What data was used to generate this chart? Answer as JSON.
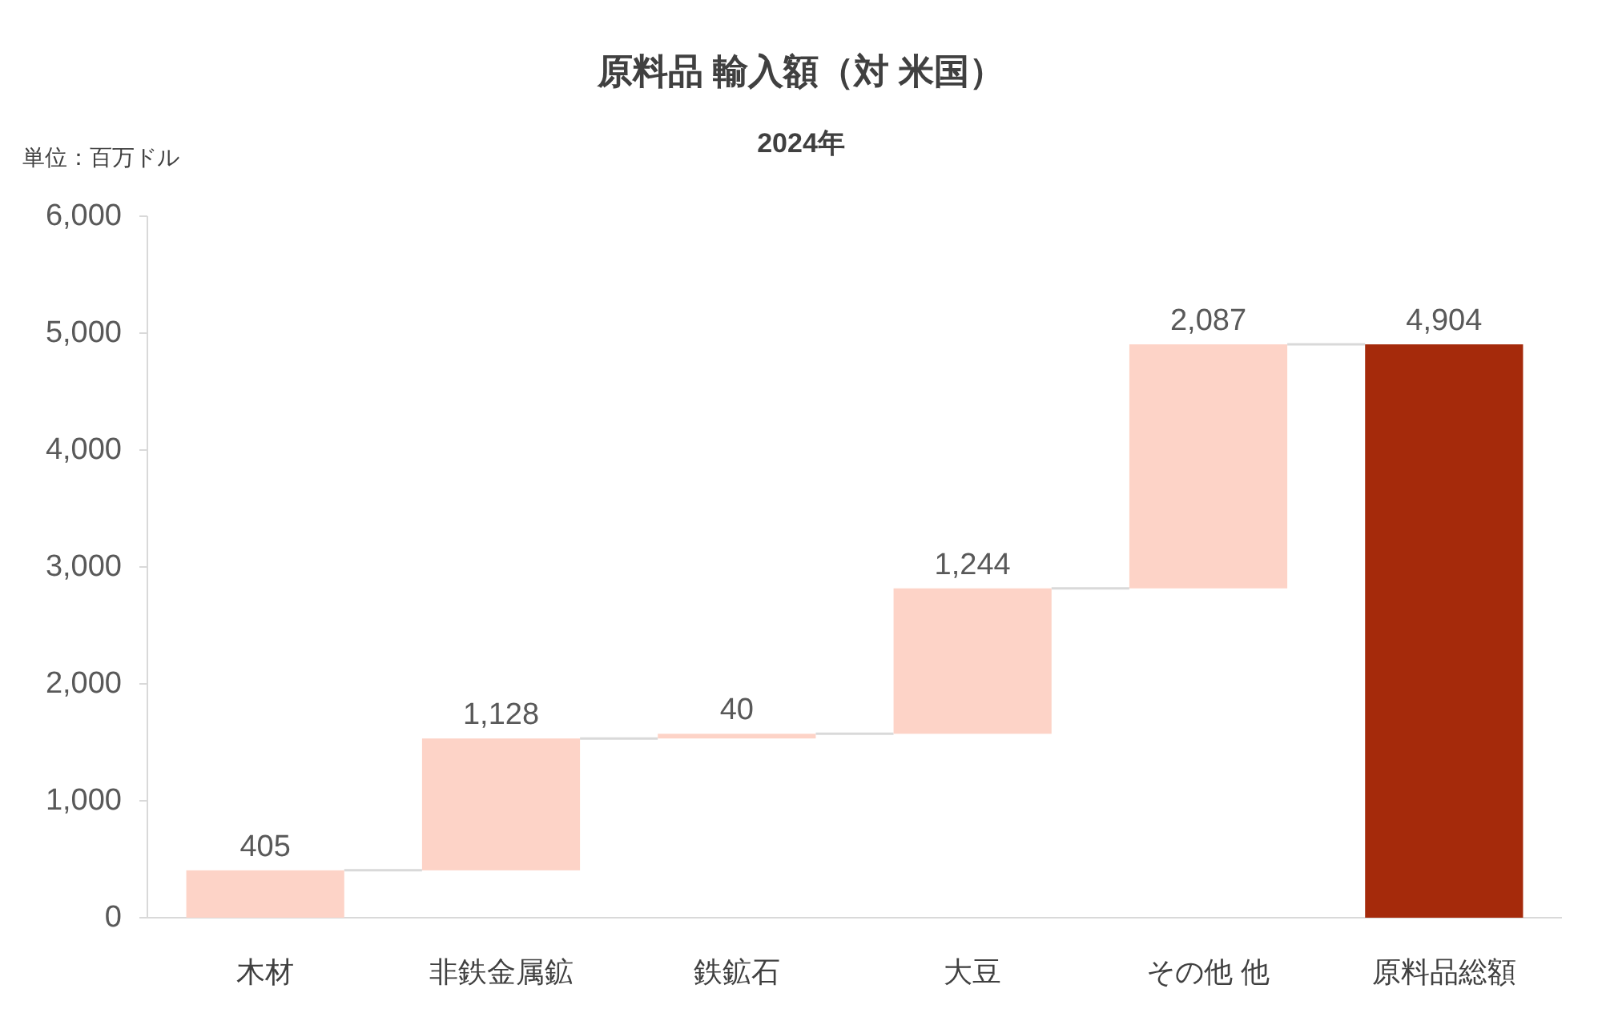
{
  "chart_data": {
    "type": "bar",
    "title": "原料品 輸入額（対 米国）",
    "subtitle": "2024年",
    "annotations": [
      "単位：百万ドル"
    ],
    "categories": [
      "木材",
      "非鉄金属鉱",
      "鉄鉱石",
      "大豆",
      "その他 他",
      "原料品総額"
    ],
    "values": [
      405,
      1128,
      40,
      1244,
      2087,
      4904
    ],
    "base": [
      0,
      405,
      1533,
      1573,
      2817,
      0
    ],
    "colors": [
      "#fdd3c7",
      "#fdd3c7",
      "#fdd3c7",
      "#fdd3c7",
      "#fdd3c7",
      "#a52a0b"
    ],
    "value_labels": [
      "405",
      "1,128",
      "40",
      "1,244",
      "2,087",
      "4,904"
    ],
    "ylim": [
      0,
      6000
    ],
    "yticks": [
      {
        "value": 0,
        "label": "0"
      },
      {
        "value": 1000,
        "label": "1,000"
      },
      {
        "value": 2000,
        "label": "2,000"
      },
      {
        "value": 3000,
        "label": "3,000"
      },
      {
        "value": 4000,
        "label": "4,000"
      },
      {
        "value": 5000,
        "label": "5,000"
      },
      {
        "value": 6000,
        "label": "6,000"
      }
    ],
    "grid": false
  }
}
